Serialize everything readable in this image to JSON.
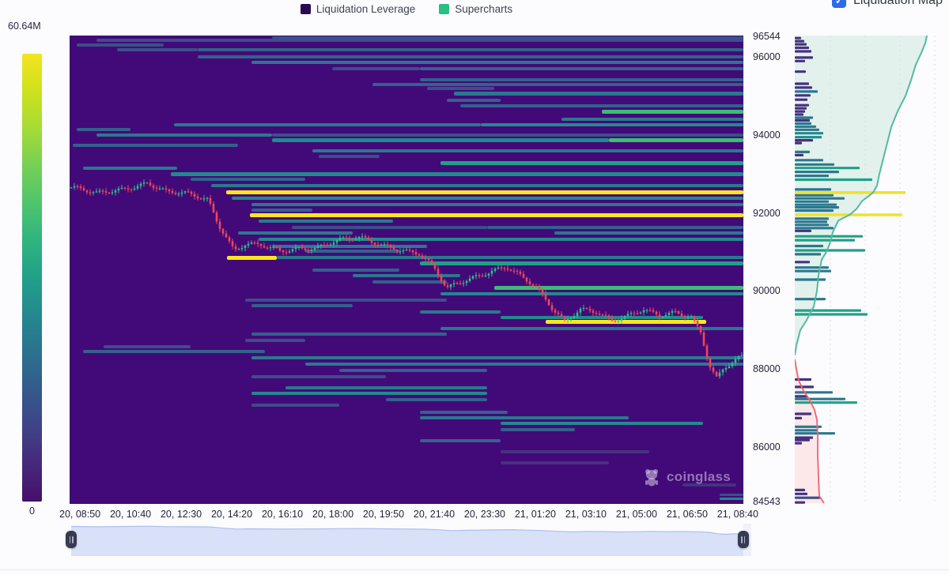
{
  "legend": {
    "items": [
      {
        "label": "Liquidation Leverage",
        "color": "#2a0b52"
      },
      {
        "label": "Supercharts",
        "color": "#2abd84"
      }
    ]
  },
  "map_toggle": {
    "label": "Liquidation Map",
    "checked": true,
    "color": "#2e6be6",
    "check_glyph": "✓"
  },
  "colorbar": {
    "max_label": "60.64M",
    "min_label": "0",
    "stops": [
      "#f2e41f",
      "#cfe11c",
      "#a5db36",
      "#76d054",
      "#4fc46c",
      "#2fb47f",
      "#21a08a",
      "#24898e",
      "#2b728e",
      "#345a8c",
      "#3f4387",
      "#46287c",
      "#45106a"
    ]
  },
  "watermark": {
    "text": "coinglass"
  },
  "chart_data": {
    "type": "heatmap",
    "price_range": [
      84543,
      96544
    ],
    "price_axis_ticks": [
      96544,
      96000,
      94000,
      92000,
      90000,
      88000,
      86000,
      84543
    ],
    "time_axis_labels": [
      "20, 08:50",
      "20, 10:40",
      "20, 12:30",
      "20, 14:20",
      "20, 16:10",
      "20, 18:00",
      "20, 19:50",
      "20, 21:40",
      "20, 23:30",
      "21, 01:20",
      "21, 03:10",
      "21, 05:00",
      "21, 06:50",
      "21, 08:40"
    ],
    "background": "#420a78",
    "palette": [
      "#46327e",
      "#3d4e8a",
      "#34618d",
      "#2b788e",
      "#23898e",
      "#1fa187",
      "#3dbc74",
      "#aadc32",
      "#f8e621"
    ],
    "candle_colors": {
      "up": "#2dc08c",
      "down": "#f0455c"
    },
    "heatmap_bands": [
      [
        96490,
        0.3,
        1.0,
        1,
        3
      ],
      [
        96420,
        0.04,
        1.0,
        1,
        4
      ],
      [
        96300,
        0.01,
        0.14,
        1,
        4
      ],
      [
        96180,
        0.07,
        0.19,
        1,
        4
      ],
      [
        96180,
        0.19,
        1.0,
        2,
        4
      ],
      [
        96000,
        0.19,
        1.0,
        2,
        4
      ],
      [
        95850,
        0.27,
        1.0,
        3,
        4
      ],
      [
        95700,
        0.39,
        0.52,
        1,
        4
      ],
      [
        95700,
        0.52,
        1.0,
        2,
        4
      ],
      [
        95420,
        0.52,
        1.0,
        2,
        4
      ],
      [
        95300,
        0.45,
        1.0,
        2,
        4
      ],
      [
        95180,
        0.53,
        0.63,
        1,
        4
      ],
      [
        95050,
        0.57,
        1.0,
        3,
        5
      ],
      [
        94890,
        0.56,
        0.64,
        2,
        4
      ],
      [
        94750,
        0.58,
        1.0,
        2,
        4
      ],
      [
        94590,
        0.79,
        1.0,
        6,
        5
      ],
      [
        94400,
        0.73,
        1.0,
        3,
        4
      ],
      [
        94260,
        0.155,
        0.61,
        3,
        4
      ],
      [
        94260,
        0.61,
        1.0,
        4,
        4
      ],
      [
        94140,
        0.01,
        0.09,
        2,
        4
      ],
      [
        94000,
        0.04,
        0.3,
        3,
        4
      ],
      [
        94000,
        0.3,
        1.0,
        1,
        4
      ],
      [
        93870,
        0.3,
        0.8,
        4,
        5
      ],
      [
        93870,
        0.8,
        1.0,
        6,
        5
      ],
      [
        93730,
        0.005,
        0.25,
        2,
        4
      ],
      [
        93590,
        0.36,
        1.0,
        3,
        4
      ],
      [
        93450,
        0.37,
        0.46,
        1,
        4
      ],
      [
        93280,
        0.55,
        1.0,
        5,
        5
      ],
      [
        93140,
        0.02,
        0.16,
        3,
        4
      ],
      [
        93000,
        0.15,
        1.0,
        4,
        5
      ],
      [
        92860,
        0.18,
        0.35,
        2,
        4
      ],
      [
        92700,
        0.21,
        1.0,
        3,
        4
      ],
      [
        92520,
        0.232,
        1.0,
        8,
        5
      ],
      [
        92380,
        0.24,
        1.0,
        4,
        4
      ],
      [
        92220,
        0.27,
        1.0,
        3,
        4
      ],
      [
        92080,
        0.27,
        0.36,
        2,
        4
      ],
      [
        91950,
        0.267,
        1.0,
        8,
        5
      ],
      [
        91790,
        0.28,
        0.48,
        3,
        4
      ],
      [
        91620,
        0.33,
        0.62,
        1,
        4
      ],
      [
        91620,
        0.62,
        1.0,
        2,
        4
      ],
      [
        91480,
        0.25,
        0.42,
        3,
        4
      ],
      [
        91480,
        0.72,
        1.0,
        3,
        4
      ],
      [
        91320,
        0.28,
        1.0,
        4,
        4
      ],
      [
        91150,
        0.3,
        0.53,
        3,
        4
      ],
      [
        91010,
        0.35,
        0.49,
        2,
        4
      ],
      [
        90850,
        0.234,
        0.307,
        8,
        5
      ],
      [
        90850,
        0.307,
        1.0,
        3,
        4
      ],
      [
        90700,
        0.52,
        1.0,
        5,
        5
      ],
      [
        90540,
        0.36,
        0.49,
        2,
        4
      ],
      [
        90400,
        0.42,
        0.58,
        3,
        4
      ],
      [
        90240,
        0.45,
        0.56,
        2,
        4
      ],
      [
        90080,
        0.63,
        1.0,
        6,
        5
      ],
      [
        89930,
        0.55,
        1.0,
        4,
        4
      ],
      [
        89770,
        0.26,
        0.56,
        1,
        4
      ],
      [
        89630,
        0.27,
        0.42,
        2,
        4
      ],
      [
        89470,
        0.52,
        0.64,
        3,
        4
      ],
      [
        89320,
        0.64,
        0.94,
        4,
        4
      ],
      [
        89200,
        0.706,
        0.945,
        8,
        5
      ],
      [
        89040,
        0.55,
        1.0,
        3,
        4
      ],
      [
        88890,
        0.27,
        0.56,
        2,
        4
      ],
      [
        88730,
        0.26,
        0.35,
        1,
        4
      ],
      [
        88580,
        0.05,
        0.18,
        1,
        4
      ],
      [
        88440,
        0.02,
        0.29,
        2,
        4
      ],
      [
        88280,
        0.27,
        1.0,
        3,
        4
      ],
      [
        88120,
        0.35,
        1.0,
        3,
        4
      ],
      [
        87960,
        0.4,
        0.62,
        2,
        4
      ],
      [
        87800,
        0.27,
        0.47,
        1,
        4
      ],
      [
        87520,
        0.32,
        0.62,
        3,
        4
      ],
      [
        87380,
        0.27,
        0.62,
        4,
        4
      ],
      [
        87210,
        0.47,
        0.62,
        2,
        4
      ],
      [
        87070,
        0.27,
        0.4,
        1,
        4
      ],
      [
        86900,
        0.52,
        0.65,
        2,
        4
      ],
      [
        86760,
        0.52,
        0.83,
        3,
        4
      ],
      [
        86600,
        0.64,
        0.94,
        4,
        4
      ],
      [
        86440,
        0.64,
        0.75,
        2,
        4
      ],
      [
        86160,
        0.52,
        0.64,
        2,
        4
      ],
      [
        85870,
        0.64,
        0.86,
        0,
        4
      ],
      [
        85590,
        0.64,
        0.8,
        0,
        4
      ],
      [
        85020,
        0.91,
        0.99,
        0,
        4
      ],
      [
        84770,
        0.965,
        1.0,
        1,
        3
      ],
      [
        84670,
        0.965,
        1.0,
        4,
        3
      ]
    ],
    "candle_anchors": [
      [
        0.002,
        92650
      ],
      [
        0.038,
        92480
      ],
      [
        0.073,
        92600
      ],
      [
        0.114,
        92780
      ],
      [
        0.143,
        92520
      ],
      [
        0.172,
        92480
      ],
      [
        0.204,
        92350
      ],
      [
        0.219,
        91750
      ],
      [
        0.243,
        91050
      ],
      [
        0.26,
        91200
      ],
      [
        0.284,
        91150
      ],
      [
        0.313,
        91000
      ],
      [
        0.337,
        91100
      ],
      [
        0.366,
        91120
      ],
      [
        0.395,
        91280
      ],
      [
        0.431,
        91350
      ],
      [
        0.46,
        91200
      ],
      [
        0.489,
        91080
      ],
      [
        0.519,
        90950
      ],
      [
        0.54,
        90600
      ],
      [
        0.56,
        90050
      ],
      [
        0.583,
        90250
      ],
      [
        0.613,
        90450
      ],
      [
        0.648,
        90620
      ],
      [
        0.671,
        90350
      ],
      [
        0.695,
        90050
      ],
      [
        0.718,
        89550
      ],
      [
        0.736,
        89250
      ],
      [
        0.759,
        89550
      ],
      [
        0.783,
        89450
      ],
      [
        0.806,
        89200
      ],
      [
        0.83,
        89350
      ],
      [
        0.853,
        89550
      ],
      [
        0.877,
        89400
      ],
      [
        0.9,
        89450
      ],
      [
        0.924,
        89300
      ],
      [
        0.939,
        88900
      ],
      [
        0.951,
        88100
      ],
      [
        0.962,
        87750
      ],
      [
        0.974,
        88050
      ],
      [
        0.986,
        88200
      ],
      [
        0.998,
        88350
      ]
    ],
    "liquidation_profile": {
      "gridline_offsets": [
        45,
        89,
        133,
        177
      ],
      "area_fill_long": "#e2f1ec",
      "area_fill_short": "#fce7e9",
      "line_long": "#54b9a0",
      "line_short": "#f2626e",
      "yellow_color": "#efe32a",
      "yellow_levels": [
        {
          "price": 92520,
          "len": 140
        },
        {
          "price": 91950,
          "len": 136
        }
      ],
      "cumulative_long_line": [
        [
          88350,
          0
        ],
        [
          88600,
          2
        ],
        [
          89000,
          7
        ],
        [
          89250,
          15
        ],
        [
          89450,
          20
        ],
        [
          89600,
          24
        ],
        [
          90000,
          28
        ],
        [
          90400,
          30
        ],
        [
          90800,
          34
        ],
        [
          91000,
          40
        ],
        [
          91200,
          44
        ],
        [
          91500,
          48
        ],
        [
          91800,
          55
        ],
        [
          91960,
          70
        ],
        [
          92100,
          78
        ],
        [
          92300,
          85
        ],
        [
          92520,
          99
        ],
        [
          92700,
          104
        ],
        [
          93000,
          107
        ],
        [
          93400,
          112
        ],
        [
          93800,
          117
        ],
        [
          94200,
          122
        ],
        [
          94600,
          130
        ],
        [
          95000,
          140
        ],
        [
          95400,
          147
        ],
        [
          95800,
          153
        ],
        [
          96100,
          160
        ],
        [
          96350,
          165
        ],
        [
          96544,
          167
        ]
      ],
      "cumulative_short_line": [
        [
          88250,
          0
        ],
        [
          88000,
          2
        ],
        [
          87700,
          5
        ],
        [
          87450,
          11
        ],
        [
          87200,
          19
        ],
        [
          86950,
          25
        ],
        [
          86700,
          28
        ],
        [
          86300,
          29
        ],
        [
          85800,
          29
        ],
        [
          85200,
          30
        ],
        [
          84750,
          31
        ],
        [
          84560,
          37
        ]
      ],
      "bars": [
        [
          96480,
          8,
          0
        ],
        [
          96400,
          12,
          0
        ],
        [
          96320,
          15,
          0
        ],
        [
          96230,
          18,
          0
        ],
        [
          96140,
          21,
          0
        ],
        [
          95980,
          23,
          0
        ],
        [
          95890,
          13,
          0
        ],
        [
          95620,
          14,
          0
        ],
        [
          95310,
          18,
          0
        ],
        [
          95210,
          22,
          0
        ],
        [
          95110,
          29,
          3
        ],
        [
          95010,
          20,
          0
        ],
        [
          94900,
          16,
          0
        ],
        [
          94760,
          18,
          0
        ],
        [
          94680,
          15,
          0
        ],
        [
          94600,
          13,
          0
        ],
        [
          94520,
          11,
          0
        ],
        [
          94440,
          23,
          3
        ],
        [
          94370,
          19,
          0
        ],
        [
          94290,
          21,
          3
        ],
        [
          94210,
          27,
          3
        ],
        [
          94130,
          31,
          3
        ],
        [
          94040,
          36,
          4
        ],
        [
          93940,
          34,
          4
        ],
        [
          93860,
          23,
          0
        ],
        [
          93790,
          9,
          0
        ],
        [
          93560,
          19,
          3
        ],
        [
          93480,
          11,
          0
        ],
        [
          93350,
          36,
          3
        ],
        [
          93240,
          50,
          3
        ],
        [
          93150,
          82,
          5
        ],
        [
          93050,
          56,
          3
        ],
        [
          92950,
          43,
          3
        ],
        [
          92850,
          98,
          5
        ],
        [
          92600,
          46,
          3
        ],
        [
          92450,
          49,
          3
        ],
        [
          92370,
          63,
          3
        ],
        [
          92290,
          43,
          3
        ],
        [
          92210,
          53,
          3
        ],
        [
          92140,
          56,
          3
        ],
        [
          92060,
          49,
          3
        ],
        [
          91850,
          43,
          3
        ],
        [
          91770,
          41,
          3
        ],
        [
          91690,
          43,
          3
        ],
        [
          91610,
          49,
          3
        ],
        [
          91540,
          21,
          0
        ],
        [
          91400,
          86,
          5
        ],
        [
          91300,
          76,
          5
        ],
        [
          91150,
          36,
          3
        ],
        [
          91040,
          89,
          5
        ],
        [
          90940,
          33,
          3
        ],
        [
          90740,
          19,
          0
        ],
        [
          90600,
          43,
          3
        ],
        [
          90510,
          46,
          3
        ],
        [
          90290,
          39,
          3
        ],
        [
          89790,
          39,
          3
        ],
        [
          89500,
          84,
          5
        ],
        [
          89400,
          92,
          5
        ],
        [
          87730,
          21,
          0
        ],
        [
          87540,
          24,
          0
        ],
        [
          87400,
          48,
          3
        ],
        [
          87300,
          16,
          0
        ],
        [
          87230,
          64,
          3
        ],
        [
          87140,
          79,
          5
        ],
        [
          86850,
          21,
          0
        ],
        [
          86740,
          9,
          0
        ],
        [
          86520,
          34,
          3
        ],
        [
          86430,
          29,
          3
        ],
        [
          86350,
          51,
          3
        ],
        [
          86240,
          23,
          0
        ],
        [
          86180,
          19,
          0
        ],
        [
          86100,
          9,
          0
        ],
        [
          84900,
          13,
          0
        ],
        [
          84800,
          16,
          0
        ],
        [
          84700,
          32,
          1
        ],
        [
          84580,
          13,
          0
        ]
      ]
    },
    "navigator": {
      "fill": "#d8e1f8",
      "line": "#aebfef",
      "unselected_fill": "#eef0f7",
      "price_window": [
        87500,
        92900
      ],
      "selected_fraction": [
        0.0,
        0.988
      ]
    }
  }
}
